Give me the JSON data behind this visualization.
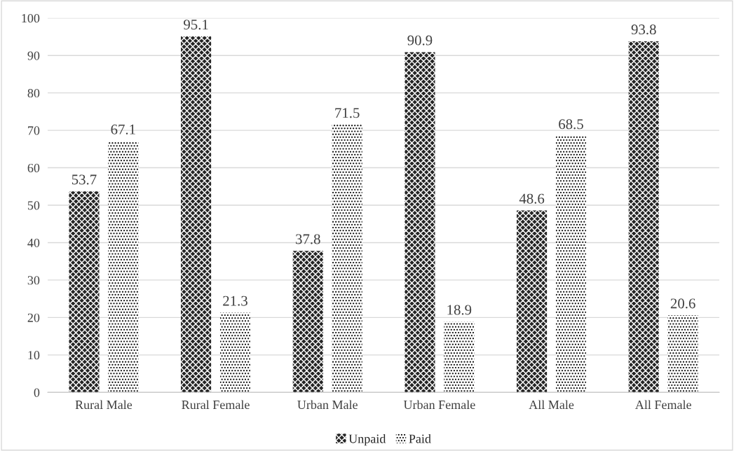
{
  "chart_data": {
    "type": "bar",
    "categories": [
      "Rural Male",
      "Rural Female",
      "Urban Male",
      "Urban Female",
      "All Male",
      "All Female"
    ],
    "series": [
      {
        "name": "Unpaid",
        "color": "#262626",
        "values": [
          53.7,
          95.1,
          37.8,
          90.9,
          48.6,
          93.8
        ]
      },
      {
        "name": "Paid",
        "color": "#ffffff",
        "values": [
          67.1,
          21.3,
          71.5,
          18.9,
          68.5,
          20.6
        ]
      }
    ],
    "ylim": [
      0,
      100
    ],
    "yticks": [
      0,
      10,
      20,
      30,
      40,
      50,
      60,
      70,
      80,
      90,
      100
    ],
    "grid": "y",
    "legend": "bottom",
    "data_labels": true
  }
}
